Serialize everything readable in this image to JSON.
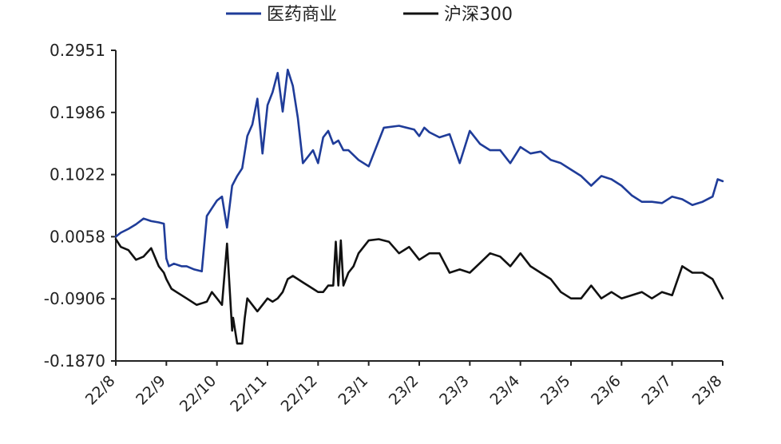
{
  "chart_data": {
    "type": "line",
    "title": "",
    "xlabel": "",
    "ylabel": "",
    "legend_position": "top",
    "grid": false,
    "ylim": [
      -0.187,
      0.2951
    ],
    "y_ticks": [
      "0.2951",
      "0.1986",
      "0.1022",
      "0.0058",
      "-0.0906",
      "-0.1870"
    ],
    "x_ticks": [
      "22/8",
      "22/9",
      "22/10",
      "22/11",
      "22/12",
      "23/1",
      "23/2",
      "23/3",
      "23/4",
      "23/5",
      "23/6",
      "23/7",
      "23/8"
    ],
    "x_range": [
      0,
      12
    ],
    "series": [
      {
        "name": "医药商业",
        "color": "#1f3c99",
        "x": [
          0,
          0.1,
          0.25,
          0.4,
          0.55,
          0.7,
          0.85,
          0.95,
          1.0,
          1.05,
          1.15,
          1.3,
          1.4,
          1.55,
          1.7,
          1.8,
          1.9,
          2.0,
          2.1,
          2.2,
          2.3,
          2.4,
          2.5,
          2.6,
          2.7,
          2.8,
          2.9,
          3.0,
          3.1,
          3.2,
          3.3,
          3.4,
          3.5,
          3.6,
          3.7,
          3.8,
          3.9,
          4.0,
          4.1,
          4.2,
          4.3,
          4.4,
          4.5,
          4.6,
          4.8,
          5.0,
          5.3,
          5.6,
          5.9,
          6.0,
          6.1,
          6.2,
          6.4,
          6.6,
          6.8,
          7.0,
          7.2,
          7.4,
          7.6,
          7.8,
          8.0,
          8.2,
          8.4,
          8.6,
          8.8,
          9.0,
          9.2,
          9.4,
          9.6,
          9.8,
          10.0,
          10.2,
          10.4,
          10.6,
          10.8,
          11.0,
          11.2,
          11.4,
          11.6,
          11.8,
          11.9,
          12.0
        ],
        "values": [
          0.006,
          0.012,
          0.018,
          0.025,
          0.034,
          0.03,
          0.028,
          0.026,
          -0.028,
          -0.04,
          -0.036,
          -0.04,
          -0.04,
          -0.045,
          -0.048,
          0.038,
          0.05,
          0.062,
          0.068,
          0.02,
          0.085,
          0.1,
          0.112,
          0.162,
          0.18,
          0.22,
          0.135,
          0.21,
          0.23,
          0.26,
          0.2,
          0.265,
          0.24,
          0.19,
          0.12,
          0.13,
          0.14,
          0.12,
          0.16,
          0.17,
          0.15,
          0.155,
          0.14,
          0.14,
          0.125,
          0.115,
          0.175,
          0.178,
          0.172,
          0.162,
          0.175,
          0.168,
          0.16,
          0.165,
          0.12,
          0.17,
          0.15,
          0.14,
          0.14,
          0.12,
          0.145,
          0.135,
          0.138,
          0.125,
          0.12,
          0.11,
          0.1,
          0.085,
          0.1,
          0.095,
          0.085,
          0.07,
          0.06,
          0.06,
          0.058,
          0.068,
          0.064,
          0.055,
          0.06,
          0.068,
          0.095,
          0.092
        ]
      },
      {
        "name": "沪深300",
        "color": "#111111",
        "x": [
          0,
          0.1,
          0.25,
          0.4,
          0.55,
          0.7,
          0.85,
          0.95,
          1.0,
          1.1,
          1.2,
          1.4,
          1.6,
          1.8,
          1.9,
          2.0,
          2.1,
          2.2,
          2.3,
          2.32,
          2.4,
          2.5,
          2.55,
          2.6,
          2.7,
          2.8,
          2.9,
          3.0,
          3.1,
          3.2,
          3.3,
          3.4,
          3.5,
          3.6,
          3.7,
          3.8,
          3.9,
          4.0,
          4.1,
          4.2,
          4.3,
          4.35,
          4.4,
          4.45,
          4.5,
          4.6,
          4.7,
          4.8,
          5.0,
          5.2,
          5.4,
          5.6,
          5.8,
          6.0,
          6.2,
          6.4,
          6.6,
          6.8,
          7.0,
          7.2,
          7.4,
          7.6,
          7.8,
          8.0,
          8.2,
          8.4,
          8.6,
          8.8,
          9.0,
          9.2,
          9.4,
          9.6,
          9.8,
          10.0,
          10.2,
          10.4,
          10.6,
          10.8,
          11.0,
          11.2,
          11.4,
          11.6,
          11.8,
          12.0
        ],
        "values": [
          0.002,
          -0.01,
          -0.015,
          -0.03,
          -0.025,
          -0.012,
          -0.04,
          -0.05,
          -0.06,
          -0.075,
          -0.08,
          -0.09,
          -0.1,
          -0.095,
          -0.08,
          -0.09,
          -0.1,
          -0.005,
          -0.14,
          -0.12,
          -0.16,
          -0.16,
          -0.12,
          -0.09,
          -0.1,
          -0.11,
          -0.1,
          -0.09,
          -0.095,
          -0.09,
          -0.08,
          -0.06,
          -0.055,
          -0.06,
          -0.065,
          -0.07,
          -0.075,
          -0.08,
          -0.08,
          -0.07,
          -0.07,
          -0.002,
          -0.07,
          0.0,
          -0.07,
          -0.05,
          -0.04,
          -0.02,
          0.0,
          0.002,
          -0.002,
          -0.02,
          -0.01,
          -0.03,
          -0.02,
          -0.02,
          -0.05,
          -0.045,
          -0.05,
          -0.035,
          -0.02,
          -0.025,
          -0.04,
          -0.02,
          -0.04,
          -0.05,
          -0.06,
          -0.08,
          -0.09,
          -0.09,
          -0.07,
          -0.09,
          -0.08,
          -0.09,
          -0.085,
          -0.08,
          -0.09,
          -0.08,
          -0.085,
          -0.04,
          -0.05,
          -0.05,
          -0.06,
          -0.09
        ]
      }
    ]
  }
}
